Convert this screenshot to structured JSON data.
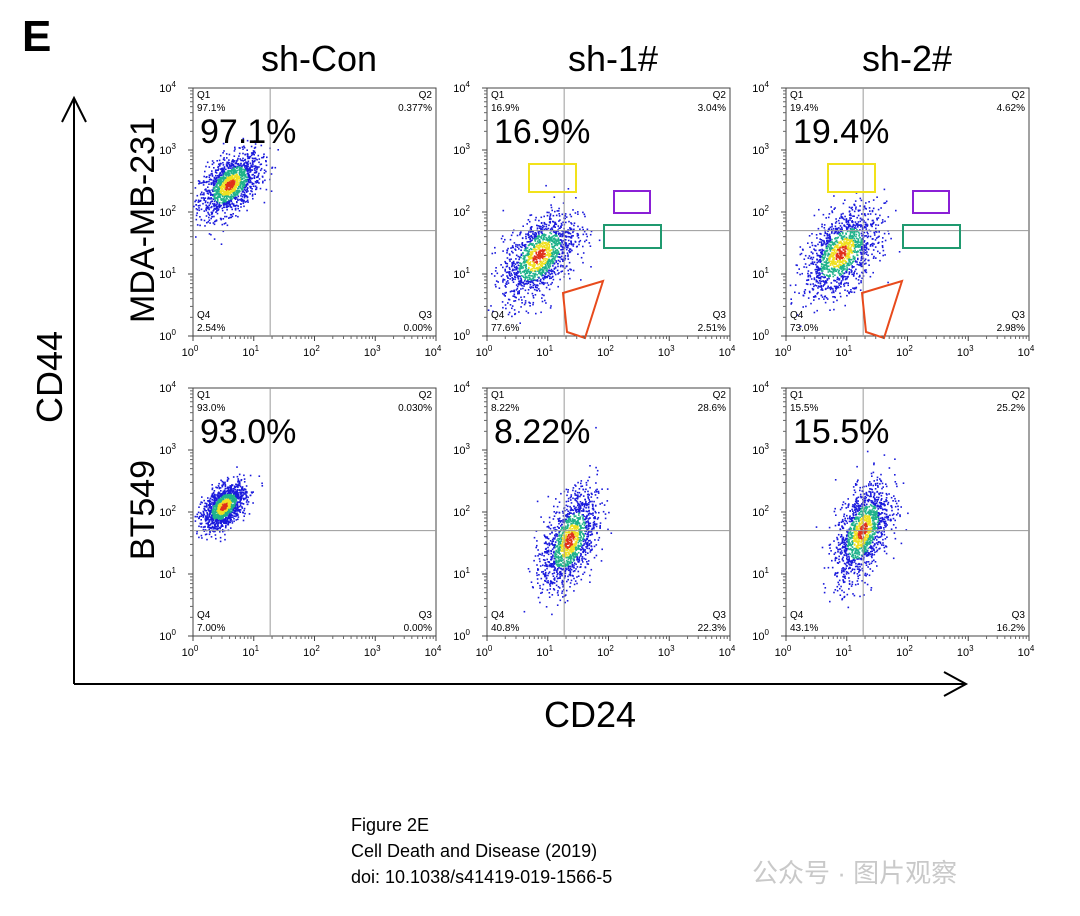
{
  "figure": {
    "panel_letter": "E",
    "column_titles": [
      "sh-Con",
      "sh-1#",
      "sh-2#"
    ],
    "row_titles": [
      "MDA-MB-231",
      "BT549"
    ],
    "y_axis_title": "CD44",
    "x_axis_title": "CD24",
    "quadrant_names": [
      "Q1",
      "Q2",
      "Q3",
      "Q4"
    ],
    "tick_exponents": [
      "0",
      "1",
      "2",
      "3",
      "4"
    ],
    "tick_base": "10"
  },
  "chart_data": [
    {
      "type": "scatter",
      "row": "MDA-MB-231",
      "column": "sh-Con",
      "big_label": "97.1%",
      "quadrants": {
        "Q1": "97.1%",
        "Q2": "0.377%",
        "Q3": "0.00%",
        "Q4": "2.54%"
      },
      "xlim": [
        1,
        10000
      ],
      "ylim": [
        1,
        10000
      ],
      "scale": "log",
      "population": {
        "center_log": [
          0.6,
          2.45
        ],
        "spread_log": [
          0.5,
          0.55
        ]
      }
    },
    {
      "type": "scatter",
      "row": "MDA-MB-231",
      "column": "sh-1#",
      "big_label": "16.9%",
      "quadrants": {
        "Q1": "16.9%",
        "Q2": "3.04%",
        "Q3": "2.51%",
        "Q4": "77.6%"
      },
      "xlim": [
        1,
        10000
      ],
      "ylim": [
        1,
        10000
      ],
      "scale": "log",
      "population": {
        "center_log": [
          0.85,
          1.3
        ],
        "spread_log": [
          0.6,
          0.75
        ]
      }
    },
    {
      "type": "scatter",
      "row": "MDA-MB-231",
      "column": "sh-2#",
      "big_label": "19.4%",
      "quadrants": {
        "Q1": "19.4%",
        "Q2": "4.62%",
        "Q3": "2.98%",
        "Q4": "73.0%"
      },
      "xlim": [
        1,
        10000
      ],
      "ylim": [
        1,
        10000
      ],
      "scale": "log",
      "population": {
        "center_log": [
          0.9,
          1.35
        ],
        "spread_log": [
          0.6,
          0.75
        ]
      }
    },
    {
      "type": "scatter",
      "row": "BT549",
      "column": "sh-Con",
      "big_label": "93.0%",
      "quadrants": {
        "Q1": "93.0%",
        "Q2": "0.030%",
        "Q3": "0.00%",
        "Q4": "7.00%"
      },
      "xlim": [
        1,
        10000
      ],
      "ylim": [
        1,
        10000
      ],
      "scale": "log",
      "population": {
        "center_log": [
          0.5,
          2.1
        ],
        "spread_log": [
          0.35,
          0.4
        ]
      }
    },
    {
      "type": "scatter",
      "row": "BT549",
      "column": "sh-1#",
      "big_label": "8.22%",
      "quadrants": {
        "Q1": "8.22%",
        "Q2": "28.6%",
        "Q3": "22.3%",
        "Q4": "40.8%"
      },
      "xlim": [
        1,
        10000
      ],
      "ylim": [
        1,
        10000
      ],
      "scale": "log",
      "population": {
        "center_log": [
          1.35,
          1.55
        ],
        "spread_log": [
          0.45,
          0.85
        ]
      }
    },
    {
      "type": "scatter",
      "row": "BT549",
      "column": "sh-2#",
      "big_label": "15.5%",
      "quadrants": {
        "Q1": "15.5%",
        "Q2": "25.2%",
        "Q3": "16.2%",
        "Q4": "43.1%"
      },
      "xlim": [
        1,
        10000
      ],
      "ylim": [
        1,
        10000
      ],
      "scale": "log",
      "population": {
        "center_log": [
          1.25,
          1.7
        ],
        "spread_log": [
          0.45,
          0.85
        ]
      }
    }
  ],
  "colors": {
    "gate_yellow": "#f2e21a",
    "gate_purple": "#8a1fd6",
    "gate_green": "#1f9a6f",
    "gate_red": "#e84a1c",
    "density_low": "#1a1adc",
    "density_mid": "#1fb28a",
    "density_high": "#f0e020",
    "density_peak": "#e0301a"
  },
  "caption": {
    "line1": "Figure 2E",
    "line2": "Cell Death and Disease (2019)",
    "line3": "doi: 10.1038/s41419-019-1566-5"
  },
  "watermark": "公众号 · 图片观察"
}
